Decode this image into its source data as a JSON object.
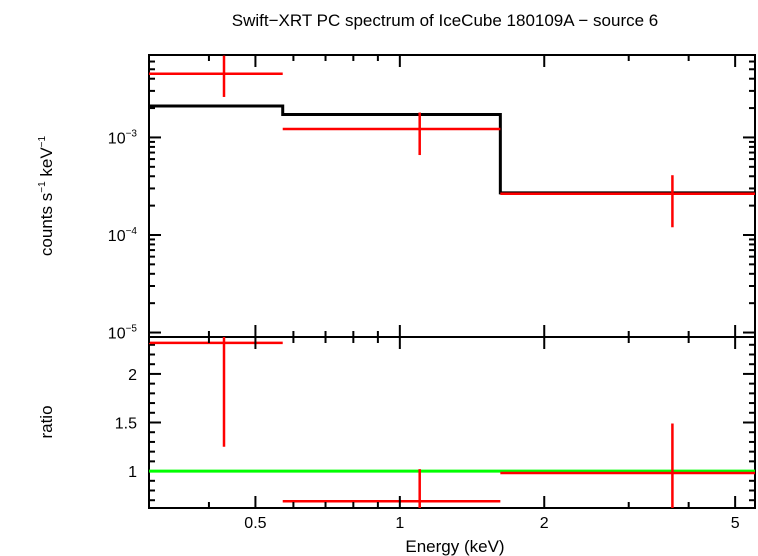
{
  "chart_data": {
    "type": "scatter",
    "title": "Swift−XRT PC spectrum of IceCube 180109A − source 6",
    "xlabel": "Energy (keV)",
    "x_scale": "log",
    "xlim": [
      0.3,
      5.5
    ],
    "x_ticks": [
      {
        "value": 0.5,
        "label": "0.5"
      },
      {
        "value": 1,
        "label": "1"
      },
      {
        "value": 2,
        "label": "2"
      },
      {
        "value": 5,
        "label": "5"
      }
    ],
    "panels": [
      {
        "name": "spectrum",
        "ylabel_main": "counts s",
        "ylabel_exp1": "−1",
        "ylabel_mid": " keV",
        "ylabel_exp2": "−1",
        "y_scale": "log",
        "ylim": [
          9e-06,
          0.007
        ],
        "y_ticks": [
          {
            "value": 0.001,
            "base": "10",
            "exp": "−3"
          },
          {
            "value": 0.0001,
            "base": "10",
            "exp": "−4"
          },
          {
            "value": 1e-05,
            "base": "10",
            "exp": "−5"
          }
        ],
        "data": [
          {
            "x": 0.43,
            "x_low": 0.3,
            "x_high": 0.57,
            "y": 0.0045,
            "y_low": 0.0026,
            "y_high": 0.0069
          },
          {
            "x": 1.1,
            "x_low": 0.57,
            "x_high": 1.62,
            "y": 0.00122,
            "y_low": 0.00066,
            "y_high": 0.0018
          },
          {
            "x": 3.7,
            "x_low": 1.62,
            "x_high": 5.5,
            "y": 0.000265,
            "y_low": 0.00012,
            "y_high": 0.00041
          }
        ],
        "model": [
          {
            "x_low": 0.3,
            "x_high": 0.57,
            "y": 0.0021
          },
          {
            "x_low": 0.57,
            "x_high": 1.62,
            "y": 0.00172
          },
          {
            "x_low": 1.62,
            "x_high": 5.5,
            "y": 0.00027
          }
        ]
      },
      {
        "name": "ratio",
        "ylabel": "ratio",
        "ylim": [
          0.62,
          2.38
        ],
        "y_ticks": [
          {
            "value": 1,
            "label": "1"
          },
          {
            "value": 1.5,
            "label": "1.5"
          },
          {
            "value": 2,
            "label": "2"
          }
        ],
        "reference_line": 1,
        "data": [
          {
            "x": 0.43,
            "x_low": 0.3,
            "x_high": 0.57,
            "y": 2.32,
            "y_low": 1.25,
            "y_high": 2.38
          },
          {
            "x": 1.1,
            "x_low": 0.57,
            "x_high": 1.62,
            "y": 0.69,
            "y_low": 0.62,
            "y_high": 1.02
          },
          {
            "x": 3.7,
            "x_low": 1.62,
            "x_high": 5.5,
            "y": 0.98,
            "y_low": 0.62,
            "y_high": 1.49
          }
        ]
      }
    ],
    "colors": {
      "data": "#ff0000",
      "model": "#000000",
      "reference": "#00ff00",
      "axes": "#000000"
    }
  }
}
